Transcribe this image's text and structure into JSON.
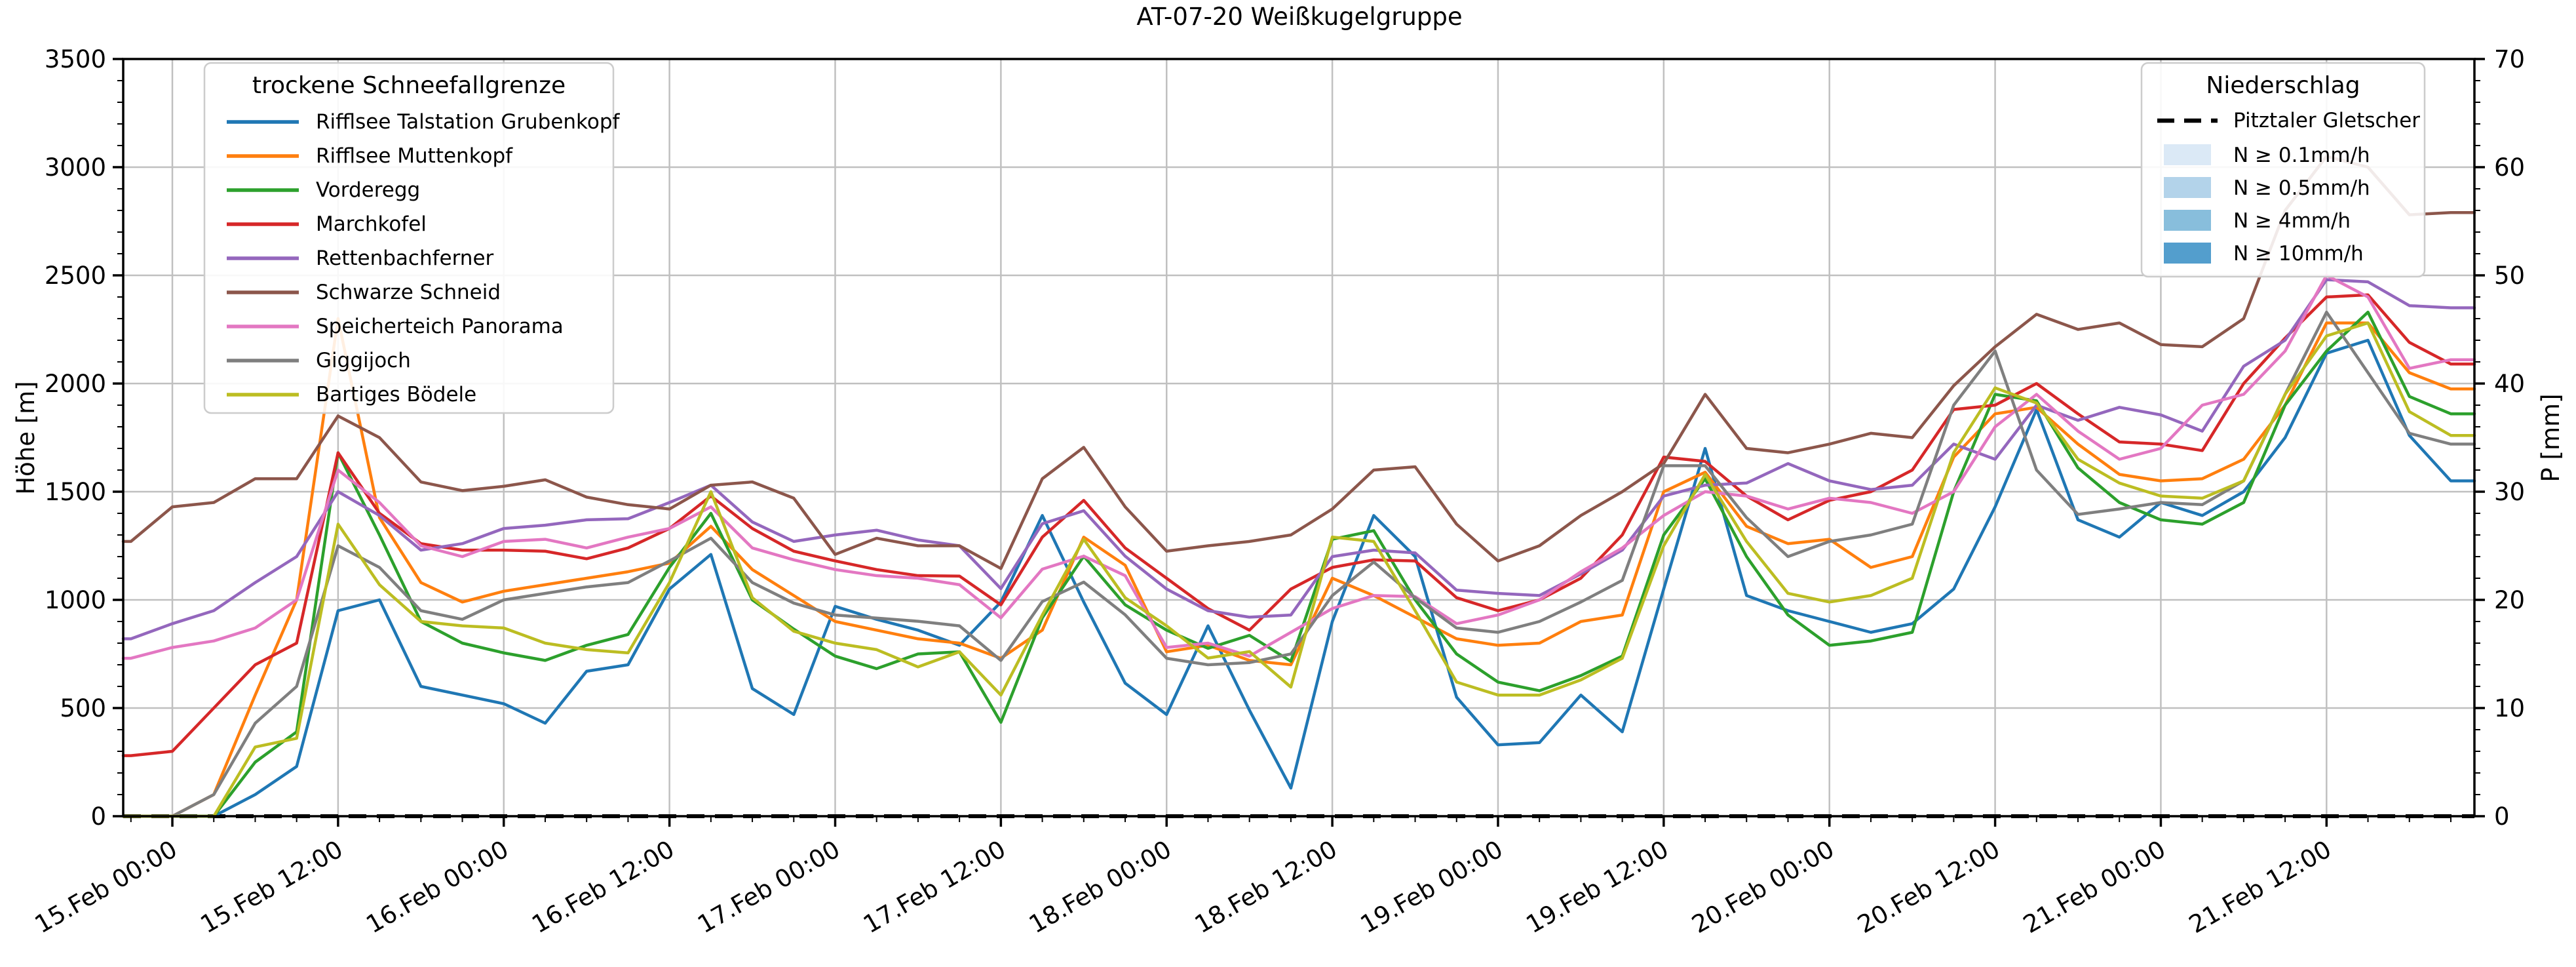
{
  "title": "AT-07-20 Weißkugelgruppe",
  "axes": {
    "y_left_label": "Höhe [m]",
    "y_right_label": "P [mm]",
    "ylim": [
      0,
      3500
    ],
    "y_left_major_step": 500,
    "y_left_minor_step": 100,
    "y2lim": [
      0,
      70
    ],
    "y_right_major_step": 10,
    "y_right_minor_step": 2,
    "y_left_ticks": [
      "0",
      "500",
      "1000",
      "1500",
      "2000",
      "2500",
      "3000",
      "3500"
    ],
    "y_right_ticks": [
      "0",
      "10",
      "20",
      "30",
      "40",
      "50",
      "60",
      "70"
    ],
    "xlim_hours": [
      -3.56,
      166.71
    ],
    "x_tick_hours": [
      0,
      12,
      24,
      36,
      48,
      60,
      72,
      84,
      96,
      108,
      120,
      132,
      144,
      156
    ],
    "x_minor_step_hours": 3,
    "x_tick_labels": [
      "15.Feb 00:00",
      "15.Feb 12:00",
      "16.Feb 00:00",
      "16.Feb 12:00",
      "17.Feb 00:00",
      "17.Feb 12:00",
      "18.Feb 00:00",
      "18.Feb 12:00",
      "19.Feb 00:00",
      "19.Feb 12:00",
      "20.Feb 00:00",
      "20.Feb 12:00",
      "21.Feb 00:00",
      "21.Feb 12:00"
    ],
    "grid_color": "#c0c0c0"
  },
  "legend_left": {
    "title": "trockene Schneefallgrenze",
    "entries": [
      {
        "label": "Rifflsee Talstation Grubenkopf",
        "color": "#1f77b4"
      },
      {
        "label": "Rifflsee Muttenkopf",
        "color": "#ff7f0e"
      },
      {
        "label": "Vorderegg",
        "color": "#2ca02c"
      },
      {
        "label": "Marchkofel",
        "color": "#d62728"
      },
      {
        "label": "Rettenbachferner",
        "color": "#9467bd"
      },
      {
        "label": "Schwarze Schneid",
        "color": "#8c564b"
      },
      {
        "label": "Speicherteich Panorama",
        "color": "#e377c2"
      },
      {
        "label": "Giggijoch",
        "color": "#7f7f7f"
      },
      {
        "label": "Bartiges Bödele",
        "color": "#bcbd22"
      }
    ]
  },
  "legend_right": {
    "title": "Niederschlag",
    "line_entry": {
      "label": "Pitztaler Gletscher",
      "color": "#000000",
      "dashed": true
    },
    "patches": [
      {
        "label": "N ≥ 0.1mm/h",
        "color": "#dbe9f6"
      },
      {
        "label": "N ≥ 0.5mm/h",
        "color": "#b3d3ea"
      },
      {
        "label": "N ≥ 4mm/h",
        "color": "#88bedc"
      },
      {
        "label": "N ≥ 10mm/h",
        "color": "#539ecd"
      }
    ]
  },
  "chart_data": {
    "type": "line",
    "title": "AT-07-20 Weißkugelgruppe",
    "xlabel": "",
    "ylabel": "Höhe [m]",
    "y2label": "P [mm]",
    "x_unit": "hours since 15.Feb 00:00",
    "x_hours": [
      -3,
      0,
      3,
      6,
      9,
      12,
      15,
      18,
      21,
      24,
      27,
      30,
      33,
      36,
      39,
      42,
      45,
      48,
      51,
      54,
      57,
      60,
      63,
      66,
      69,
      72,
      75,
      78,
      81,
      84,
      87,
      90,
      93,
      96,
      99,
      102,
      105,
      108,
      111,
      114,
      117,
      120,
      123,
      126,
      129,
      132,
      135,
      138,
      141,
      144,
      147,
      150,
      153,
      156,
      159,
      162,
      165
    ],
    "series": [
      {
        "name": "Rifflsee Talstation Grubenkopf",
        "color": "#1f77b4",
        "unit": "m",
        "values": [
          0,
          0,
          0,
          100,
          230,
          950,
          1000,
          600,
          560,
          520,
          430,
          670,
          700,
          1050,
          1210,
          590,
          470,
          970,
          910,
          860,
          790,
          990,
          1390,
          990,
          615,
          470,
          880,
          490,
          130,
          900,
          1390,
          1200,
          550,
          330,
          340,
          560,
          390,
          1050,
          1700,
          1020,
          950,
          900,
          850,
          890,
          1050,
          1430,
          1880,
          1370,
          1290,
          1450,
          1390,
          1500,
          1750,
          2140,
          2200,
          1760,
          1550
        ]
      },
      {
        "name": "Rifflsee Muttenkopf",
        "color": "#ff7f0e",
        "unit": "m",
        "values": [
          0,
          0,
          100,
          560,
          1000,
          2300,
          1380,
          1080,
          990,
          1040,
          1070,
          1100,
          1130,
          1170,
          1340,
          1140,
          1020,
          900,
          860,
          820,
          800,
          730,
          860,
          1290,
          1160,
          760,
          790,
          720,
          700,
          1100,
          1020,
          920,
          820,
          790,
          800,
          900,
          930,
          1500,
          1590,
          1340,
          1260,
          1280,
          1150,
          1200,
          1660,
          1860,
          1890,
          1720,
          1580,
          1550,
          1560,
          1650,
          1900,
          2280,
          2280,
          2050,
          1975
        ]
      },
      {
        "name": "Vorderegg",
        "color": "#2ca02c",
        "unit": "m",
        "values": [
          0,
          0,
          0,
          250,
          390,
          1680,
          1300,
          900,
          800,
          755,
          720,
          790,
          840,
          1150,
          1400,
          1000,
          865,
          740,
          682,
          750,
          760,
          434,
          917,
          1202,
          977,
          860,
          776,
          836,
          716,
          1280,
          1320,
          1000,
          750,
          620,
          580,
          650,
          740,
          1300,
          1560,
          1200,
          930,
          790,
          810,
          850,
          1500,
          1950,
          1920,
          1610,
          1450,
          1370,
          1350,
          1450,
          1900,
          2150,
          2330,
          1940,
          1860
        ]
      },
      {
        "name": "Marchkofel",
        "color": "#d62728",
        "unit": "m",
        "values": [
          280,
          300,
          500,
          700,
          800,
          1680,
          1400,
          1260,
          1230,
          1230,
          1225,
          1190,
          1240,
          1330,
          1480,
          1330,
          1225,
          1180,
          1140,
          1112,
          1110,
          977,
          1290,
          1460,
          1240,
          1100,
          960,
          860,
          1050,
          1150,
          1185,
          1180,
          1010,
          950,
          1000,
          1100,
          1300,
          1660,
          1640,
          1480,
          1370,
          1460,
          1500,
          1600,
          1880,
          1900,
          2000,
          1860,
          1730,
          1720,
          1690,
          2000,
          2210,
          2400,
          2410,
          2190,
          2090
        ]
      },
      {
        "name": "Rettenbachferner",
        "color": "#9467bd",
        "unit": "m",
        "values": [
          820,
          890,
          950,
          1080,
          1200,
          1500,
          1390,
          1230,
          1260,
          1330,
          1345,
          1370,
          1375,
          1450,
          1530,
          1360,
          1270,
          1300,
          1322,
          1277,
          1250,
          1052,
          1352,
          1412,
          1202,
          1050,
          950,
          920,
          930,
          1200,
          1230,
          1217,
          1045,
          1030,
          1020,
          1120,
          1230,
          1480,
          1530,
          1540,
          1630,
          1550,
          1510,
          1530,
          1720,
          1650,
          1900,
          1830,
          1890,
          1855,
          1780,
          2080,
          2200,
          2480,
          2470,
          2360,
          2350
        ]
      },
      {
        "name": "Schwarze Schneid",
        "color": "#8c564b",
        "unit": "m",
        "values": [
          1270,
          1430,
          1450,
          1560,
          1560,
          1850,
          1750,
          1545,
          1505,
          1525,
          1555,
          1475,
          1440,
          1420,
          1530,
          1545,
          1470,
          1210,
          1285,
          1250,
          1250,
          1145,
          1560,
          1705,
          1430,
          1225,
          1250,
          1270,
          1300,
          1420,
          1600,
          1615,
          1350,
          1180,
          1250,
          1390,
          1500,
          1630,
          1950,
          1700,
          1680,
          1720,
          1770,
          1750,
          1990,
          2170,
          2320,
          2250,
          2280,
          2180,
          2170,
          2300,
          2800,
          3050,
          3000,
          2780,
          2790
        ]
      },
      {
        "name": "Speicherteich Panorama",
        "color": "#e377c2",
        "unit": "m",
        "values": [
          730,
          780,
          810,
          870,
          1000,
          1600,
          1450,
          1250,
          1200,
          1270,
          1280,
          1240,
          1290,
          1330,
          1430,
          1240,
          1185,
          1140,
          1112,
          1100,
          1070,
          917,
          1142,
          1202,
          1112,
          780,
          800,
          740,
          850,
          960,
          1020,
          1015,
          890,
          930,
          1000,
          1130,
          1240,
          1390,
          1500,
          1480,
          1420,
          1470,
          1450,
          1400,
          1500,
          1800,
          1950,
          1780,
          1650,
          1700,
          1900,
          1950,
          2150,
          2500,
          2400,
          2070,
          2110
        ]
      },
      {
        "name": "Giggijoch",
        "color": "#7f7f7f",
        "unit": "m",
        "values": [
          0,
          0,
          100,
          430,
          600,
          1250,
          1150,
          950,
          910,
          1000,
          1030,
          1060,
          1080,
          1180,
          1285,
          1080,
          985,
          930,
          916,
          901,
          880,
          720,
          992,
          1082,
          931,
          730,
          700,
          710,
          750,
          1020,
          1175,
          1010,
          870,
          850,
          900,
          990,
          1090,
          1620,
          1620,
          1380,
          1200,
          1270,
          1300,
          1350,
          1900,
          2150,
          1600,
          1395,
          1420,
          1450,
          1440,
          1550,
          1950,
          2330,
          2050,
          1770,
          1720
        ]
      },
      {
        "name": "Bartiges Bödele",
        "color": "#bcbd22",
        "unit": "m",
        "values": [
          0,
          0,
          0,
          320,
          360,
          1350,
          1070,
          900,
          880,
          870,
          800,
          770,
          755,
          1080,
          1500,
          1010,
          855,
          800,
          770,
          690,
          760,
          560,
          930,
          1280,
          1010,
          880,
          731,
          761,
          597,
          1290,
          1270,
          950,
          620,
          560,
          560,
          630,
          730,
          1250,
          1580,
          1270,
          1030,
          990,
          1020,
          1100,
          1680,
          1980,
          1910,
          1650,
          1540,
          1480,
          1470,
          1550,
          1950,
          2220,
          2280,
          1870,
          1760
        ]
      }
    ],
    "precipitation_series": {
      "name": "Pitztaler Gletscher",
      "color": "#000000",
      "style": "dashed",
      "unit": "mm",
      "values": [
        0,
        0,
        0,
        0,
        0,
        0,
        0,
        0,
        0,
        0,
        0,
        0,
        0,
        0,
        0,
        0,
        0,
        0,
        0,
        0,
        0,
        0,
        0,
        0,
        0,
        0,
        0,
        0,
        0,
        0,
        0,
        0,
        0,
        0,
        0,
        0,
        0,
        0,
        0,
        0,
        0,
        0,
        0,
        0,
        0,
        0,
        0,
        0,
        0,
        0,
        0,
        0,
        0,
        0,
        0,
        0,
        0
      ]
    },
    "legend_position": {
      "snowline": "upper left",
      "precipitation": "upper right"
    },
    "grid": true
  }
}
